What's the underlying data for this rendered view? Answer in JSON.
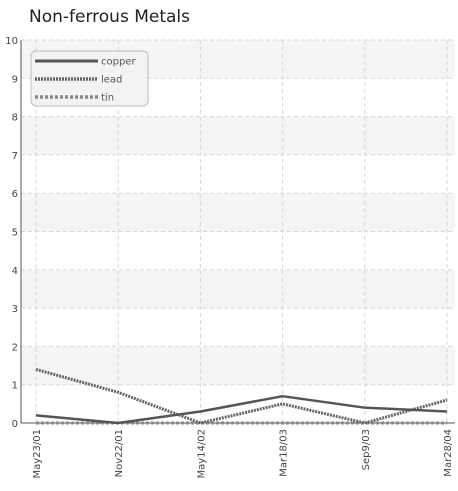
{
  "chart_data": {
    "type": "line",
    "title": "Non-ferrous Metals",
    "xlabel": "",
    "ylabel": "",
    "ylim": [
      0,
      10
    ],
    "yticks": [
      "0",
      "1",
      "2",
      "3",
      "4",
      "5",
      "6",
      "7",
      "8",
      "9",
      "10"
    ],
    "categories": [
      "May23/01",
      "Nov22/01",
      "May14/02",
      "Mar18/03",
      "Sep9/03",
      "Mar28/04"
    ],
    "grid": true,
    "legend_position": "top-left",
    "series": [
      {
        "name": "copper",
        "values": [
          0.2,
          0.0,
          0.3,
          0.7,
          0.4,
          0.3
        ],
        "color": "#555555",
        "style": "solid"
      },
      {
        "name": "lead",
        "values": [
          1.4,
          0.8,
          0.0,
          0.5,
          0.0,
          0.6
        ],
        "color": "#666666",
        "style": "dotted"
      },
      {
        "name": "tin",
        "values": [
          0.0,
          0.0,
          0.0,
          0.0,
          0.0,
          0.0
        ],
        "color": "#888888",
        "style": "dashed"
      }
    ]
  }
}
